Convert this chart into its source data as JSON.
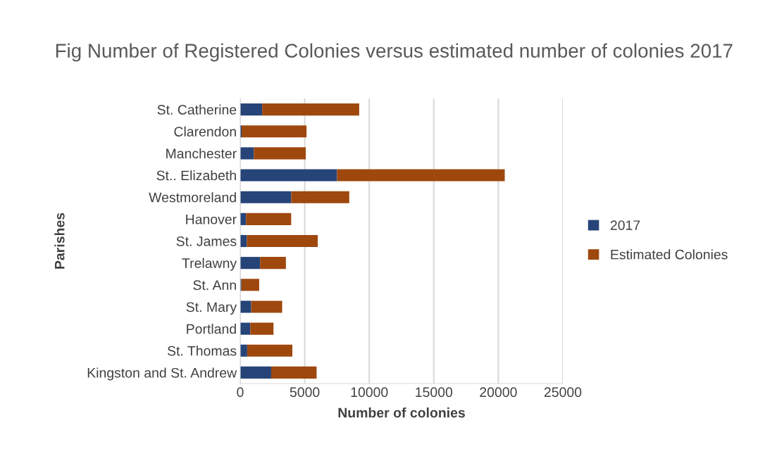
{
  "chart_data": {
    "type": "bar",
    "orientation": "horizontal",
    "stacked": true,
    "title": "Fig Number of Registered Colonies versus estimated number of colonies 2017",
    "xlabel": "Number of colonies",
    "ylabel": "Parishes",
    "categories": [
      "St. Catherine",
      "Clarendon",
      "Manchester",
      "St.. Elizabeth",
      "Westmoreland",
      "Hanover",
      "St. James",
      "Trelawny",
      "St. Ann",
      "St. Mary",
      "Portland",
      "St. Thomas",
      "Kingston and St. Andrew"
    ],
    "series": [
      {
        "name": "2017",
        "color": "#264478",
        "values": [
          1700,
          110,
          1050,
          7500,
          3950,
          450,
          510,
          1540,
          90,
          850,
          780,
          540,
          2400
        ]
      },
      {
        "name": "Estimated Colonies",
        "color": "#9e480e",
        "values": [
          7520,
          5030,
          4030,
          13000,
          4500,
          3500,
          5500,
          2000,
          1380,
          2400,
          1800,
          3500,
          3520
        ]
      }
    ],
    "xlim": [
      0,
      25000
    ],
    "xticks": [
      0,
      5000,
      10000,
      15000,
      20000,
      25000
    ],
    "grid": "x",
    "legend": "right"
  }
}
